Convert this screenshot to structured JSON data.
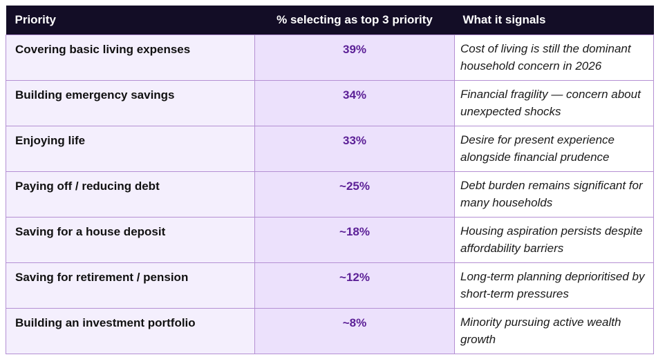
{
  "table": {
    "headers": {
      "priority": "Priority",
      "percent": "% selecting as top 3 priority",
      "signal": "What it signals"
    },
    "rows": [
      {
        "priority": "Covering basic living expenses",
        "percent": "39%",
        "signal": "Cost of living is still the dominant household concern in 2026"
      },
      {
        "priority": "Building emergency savings",
        "percent": "34%",
        "signal": "Financial fragility — concern about unexpected shocks"
      },
      {
        "priority": "Enjoying life",
        "percent": "33%",
        "signal": "Desire for present experience alongside financial prudence"
      },
      {
        "priority": "Paying off / reducing debt",
        "percent": "~25%",
        "signal": "Debt burden remains significant for many households"
      },
      {
        "priority": "Saving for a house deposit",
        "percent": "~18%",
        "signal": "Housing aspiration persists despite affordability barriers"
      },
      {
        "priority": "Saving for retirement / pension",
        "percent": "~12%",
        "signal": "Long-term planning deprioritised by short-term pressures"
      },
      {
        "priority": "Building an investment portfolio",
        "percent": "~8%",
        "signal": "Minority pursuing active wealth growth"
      }
    ]
  }
}
